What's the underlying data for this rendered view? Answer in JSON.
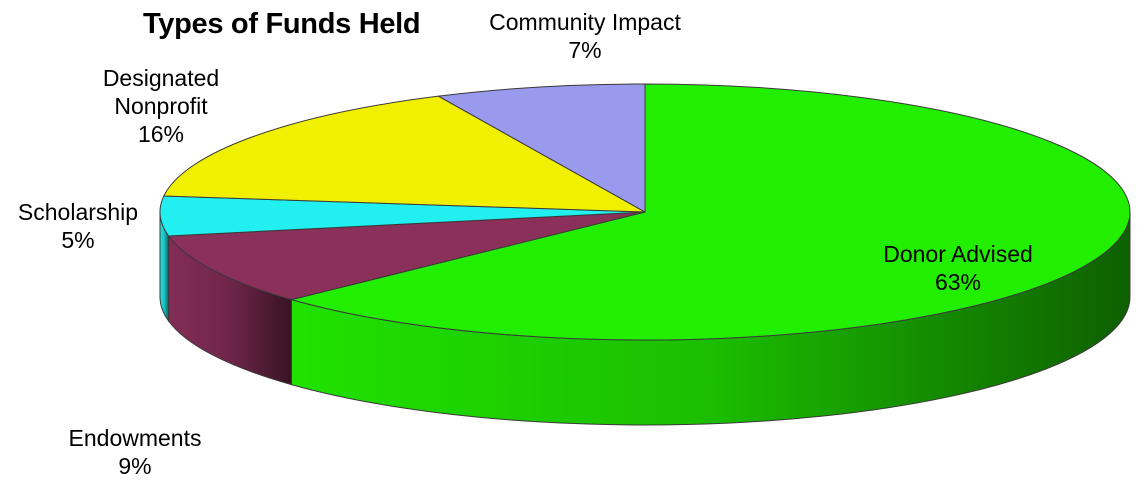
{
  "chart_data": {
    "type": "pie",
    "title": "Types of Funds Held",
    "slices": [
      {
        "label": "Donor Advised",
        "name_lines": [
          "Donor Advised"
        ],
        "percent_label": "63%",
        "value": 63,
        "color": "#22ee00"
      },
      {
        "label": "Endowments",
        "name_lines": [
          "Endowments"
        ],
        "percent_label": "9%",
        "value": 9,
        "color": "#8b2f5b"
      },
      {
        "label": "Scholarship",
        "name_lines": [
          "Scholarship"
        ],
        "percent_label": "5%",
        "value": 5,
        "color": "#22f0f0"
      },
      {
        "label": "Designated Nonprofit",
        "name_lines": [
          "Designated",
          "Nonprofit"
        ],
        "percent_label": "16%",
        "value": 16,
        "color": "#f0f000"
      },
      {
        "label": "Community Impact",
        "name_lines": [
          "Community Impact"
        ],
        "percent_label": "7%",
        "value": 7,
        "color": "#9999ee"
      }
    ],
    "legend": "none",
    "style": "3d-tilted"
  }
}
